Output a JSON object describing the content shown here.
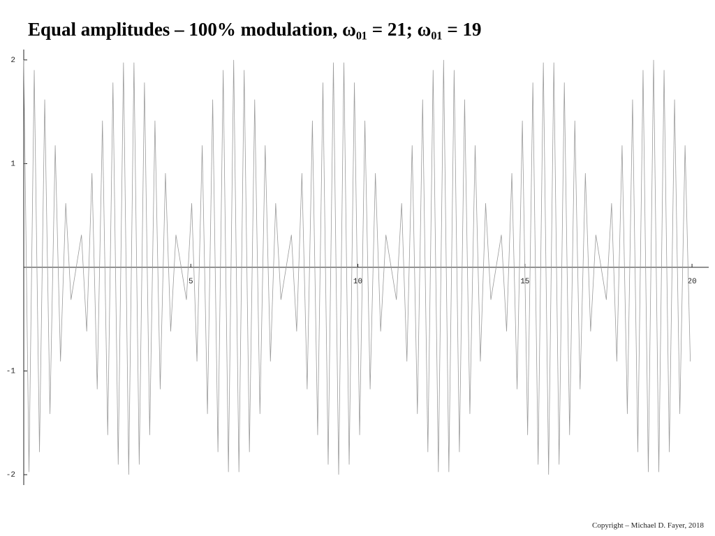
{
  "chart_data": {
    "type": "line",
    "title": "Equal amplitudes – 100% modulation,  ω₀₁ = 21; ω₀₁ = 19",
    "x": [
      0,
      0.157,
      0.314,
      0.471,
      0.628,
      0.785,
      0.942,
      1.1,
      1.257,
      1.414,
      1.571,
      1.728,
      1.885,
      2.042,
      2.199,
      2.356,
      2.513,
      2.67,
      2.827,
      2.985,
      3.142,
      3.299,
      3.456,
      3.613,
      3.77,
      3.927,
      4.084,
      4.241,
      4.398,
      4.555,
      4.712,
      4.869,
      5.027,
      5.184,
      5.341,
      5.498,
      5.655,
      5.812,
      5.969,
      6.126,
      6.283,
      6.44,
      6.597,
      6.754,
      6.912,
      7.069,
      7.226,
      7.383,
      7.54,
      7.697,
      7.854,
      8.011,
      8.168,
      8.325,
      8.482,
      8.639,
      8.796,
      8.954,
      9.111,
      9.268,
      9.425,
      9.582,
      9.739,
      9.896,
      10.053,
      10.21,
      10.367,
      10.524,
      10.681,
      10.838,
      10.996,
      11.153,
      11.31,
      11.467,
      11.624,
      11.781,
      11.938,
      12.095,
      12.252,
      12.409,
      12.566,
      12.723,
      12.881,
      13.038,
      13.195,
      13.352,
      13.509,
      13.666,
      13.823,
      13.98,
      14.137,
      14.294,
      14.451,
      14.608,
      14.765,
      14.923,
      15.08,
      15.237,
      15.394,
      15.551,
      15.708,
      15.865,
      16.022,
      16.179,
      16.336,
      16.493,
      16.65,
      16.808,
      16.965,
      17.122,
      17.279,
      17.436,
      17.593,
      17.75,
      17.907,
      18.064,
      18.221,
      18.378,
      18.535,
      18.692,
      18.85,
      19.007,
      19.164,
      19.321,
      19.478,
      19.635,
      19.792,
      19.949
    ],
    "series": [
      {
        "color": "#9a9a9a",
        "values": [
          2,
          -1.975,
          1.902,
          -1.782,
          1.618,
          -1.414,
          1.176,
          -0.908,
          0.618,
          -0.313,
          0,
          0.313,
          -0.618,
          0.908,
          -1.176,
          1.414,
          -1.618,
          1.782,
          -1.902,
          1.975,
          -2,
          1.975,
          -1.902,
          1.782,
          -1.618,
          1.414,
          -1.176,
          0.908,
          -0.618,
          0.313,
          0,
          -0.313,
          0.618,
          -0.908,
          1.176,
          -1.414,
          1.618,
          -1.782,
          1.902,
          -1.975,
          2,
          -1.975,
          1.902,
          -1.782,
          1.618,
          -1.414,
          1.176,
          -0.908,
          0.618,
          -0.313,
          0,
          0.313,
          -0.618,
          0.908,
          -1.176,
          1.414,
          -1.618,
          1.782,
          -1.902,
          1.975,
          -2,
          1.975,
          -1.902,
          1.782,
          -1.618,
          1.414,
          -1.176,
          0.908,
          -0.618,
          0.313,
          0,
          -0.313,
          0.618,
          -0.908,
          1.176,
          -1.414,
          1.618,
          -1.782,
          1.902,
          -1.975,
          2,
          -1.975,
          1.902,
          -1.782,
          1.618,
          -1.414,
          1.176,
          -0.908,
          0.618,
          -0.313,
          0,
          0.313,
          -0.618,
          0.908,
          -1.176,
          1.414,
          -1.618,
          1.782,
          -1.902,
          1.975,
          -2,
          1.975,
          -1.902,
          1.782,
          -1.618,
          1.414,
          -1.176,
          0.908,
          -0.618,
          0.313,
          0,
          -0.313,
          0.618,
          -0.908,
          1.176,
          -1.414,
          1.618,
          -1.782,
          1.902,
          -1.975,
          2,
          -1.975,
          1.902,
          -1.782,
          1.618,
          -1.414,
          1.176,
          -0.908
        ]
      }
    ],
    "xlim": [
      0,
      20.5
    ],
    "ylim": [
      -2.1,
      2.1
    ],
    "xticks": [
      5,
      10,
      15,
      20
    ],
    "yticks": [
      -2,
      -1,
      1,
      2
    ]
  },
  "copyright": "Copyright – Michael D. Fayer, 2018"
}
